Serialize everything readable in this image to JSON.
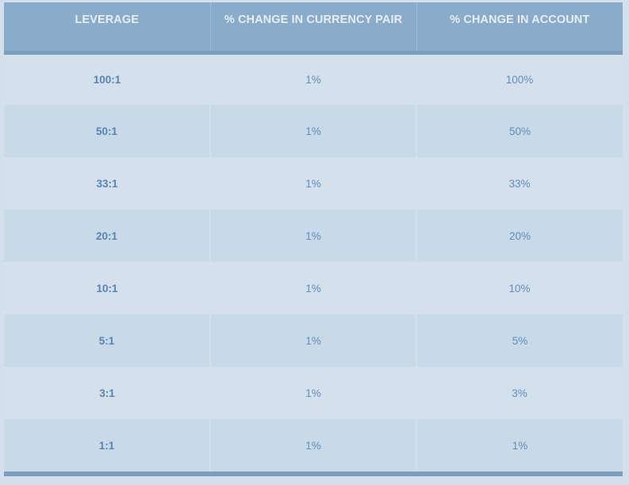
{
  "table": {
    "headers": [
      "LEVERAGE",
      "% CHANGE IN CURRENCY PAIR",
      "% CHANGE IN ACCOUNT"
    ],
    "rows": [
      [
        "100:1",
        "1%",
        "100%"
      ],
      [
        "50:1",
        "1%",
        "50%"
      ],
      [
        "33:1",
        "1%",
        "33%"
      ],
      [
        "20:1",
        "1%",
        "20%"
      ],
      [
        "10:1",
        "1%",
        "10%"
      ],
      [
        "5:1",
        "1%",
        "5%"
      ],
      [
        "3:1",
        "1%",
        "3%"
      ],
      [
        "1:1",
        "1%",
        "1%"
      ]
    ]
  },
  "colors": {
    "header_bg": "#8aaccb",
    "header_text": "#e7eef6",
    "row_light": "#d4e0eb",
    "row_dark": "#c8d9e7",
    "cell_text": "#5e8fbf",
    "rule": "#7a9dc0"
  }
}
